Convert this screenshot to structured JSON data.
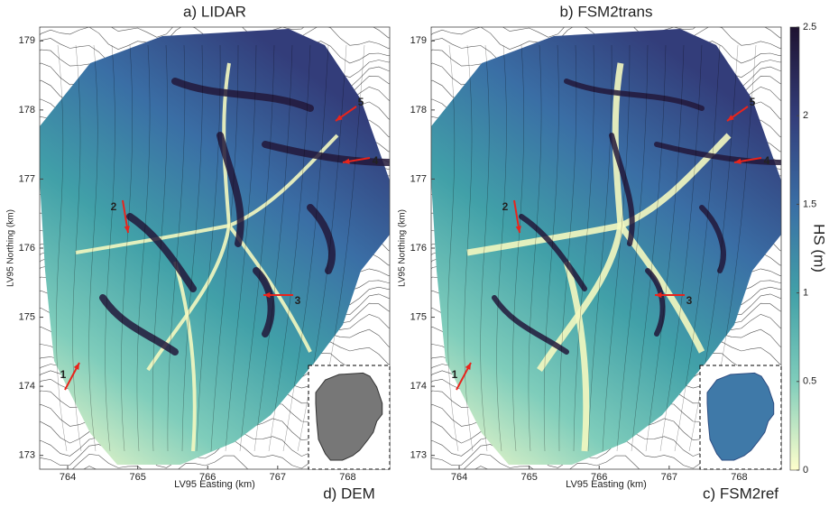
{
  "chart_data": [
    {
      "type": "map",
      "title": "a) LIDAR",
      "xlabel": "LV95 Easting (km)",
      "ylabel": "LV95 Northing (km)",
      "xlim": [
        763.6,
        768.6
      ],
      "ylim": [
        172.8,
        179.2
      ],
      "xticks": [
        764,
        765,
        766,
        767,
        768
      ],
      "yticks": [
        173,
        174,
        175,
        176,
        177,
        178,
        179
      ],
      "annotations": [
        "1",
        "2",
        "3",
        "4",
        "5"
      ],
      "inset": "d) DEM",
      "arrow_color": "#e8241c"
    },
    {
      "type": "map",
      "title": "b) FSM2trans",
      "xlabel": "LV95 Easting (km)",
      "ylabel": "LV95 Northing (km)",
      "xlim": [
        763.6,
        768.6
      ],
      "ylim": [
        172.8,
        179.2
      ],
      "xticks": [
        764,
        765,
        766,
        767,
        768
      ],
      "yticks": [
        173,
        174,
        175,
        176,
        177,
        178,
        179
      ],
      "annotations": [
        "1",
        "2",
        "3",
        "4",
        "5"
      ],
      "inset": "c) FSM2ref",
      "arrow_color": "#e8241c"
    },
    {
      "type": "colorbar",
      "label": "HS (m)",
      "ylim": [
        0,
        2.5
      ],
      "yticks": [
        0,
        0.5,
        1,
        1.5,
        2,
        2.5
      ],
      "colors": [
        "#ffffcc",
        "#7fcdbb",
        "#41a0a8",
        "#3a6ea5",
        "#333d7a",
        "#1e1230"
      ]
    }
  ]
}
